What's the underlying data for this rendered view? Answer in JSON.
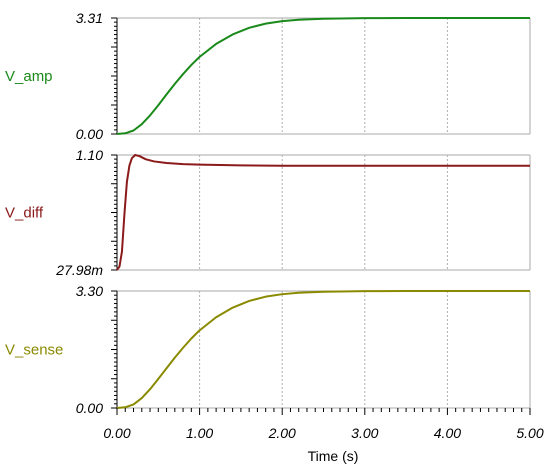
{
  "chart_data": {
    "type": "line",
    "xlabel": "Time (s)",
    "xlim": [
      0,
      5
    ],
    "x_ticks": [
      "0.00",
      "1.00",
      "2.00",
      "3.00",
      "4.00",
      "5.00"
    ],
    "x_tick_values": [
      0,
      1,
      2,
      3,
      4,
      5
    ],
    "grid": "vertical dotted at major x ticks",
    "panels": [
      {
        "ylabel": "V_amp",
        "color": "#1a8a1a",
        "ylim": [
          0,
          3.31
        ],
        "y_tick_labels": [
          "0.00",
          "3.31"
        ],
        "x": [
          0,
          0.1,
          0.2,
          0.3,
          0.4,
          0.5,
          0.6,
          0.7,
          0.8,
          0.9,
          1.0,
          1.2,
          1.4,
          1.6,
          1.8,
          2.0,
          2.2,
          2.5,
          3.0,
          3.5,
          4.0,
          5.0
        ],
        "y": [
          0,
          0.02,
          0.1,
          0.28,
          0.53,
          0.82,
          1.13,
          1.43,
          1.71,
          1.97,
          2.2,
          2.57,
          2.84,
          3.03,
          3.15,
          3.22,
          3.26,
          3.29,
          3.305,
          3.31,
          3.31,
          3.31
        ]
      },
      {
        "ylabel": "V_diff",
        "color": "#8b1a1a",
        "ylim": [
          0.02798,
          1.1
        ],
        "y_tick_labels": [
          "27.98m",
          "1.10"
        ],
        "x": [
          0,
          0.03,
          0.06,
          0.09,
          0.12,
          0.15,
          0.18,
          0.22,
          0.27,
          0.35,
          0.45,
          0.6,
          0.8,
          1.0,
          1.5,
          2.0,
          3.0,
          4.0,
          5.0
        ],
        "y": [
          0.028,
          0.06,
          0.2,
          0.55,
          0.85,
          1.0,
          1.07,
          1.1,
          1.09,
          1.06,
          1.04,
          1.025,
          1.015,
          1.01,
          1.003,
          1.0,
          1.0,
          1.0,
          1.0
        ]
      },
      {
        "ylabel": "V_sense",
        "color": "#8a8a00",
        "ylim": [
          0,
          3.3
        ],
        "y_tick_labels": [
          "0.00",
          "3.30"
        ],
        "x": [
          0,
          0.1,
          0.2,
          0.3,
          0.4,
          0.5,
          0.6,
          0.7,
          0.8,
          0.9,
          1.0,
          1.2,
          1.4,
          1.6,
          1.8,
          2.0,
          2.2,
          2.5,
          3.0,
          3.5,
          4.0,
          5.0
        ],
        "y": [
          0,
          0.02,
          0.1,
          0.28,
          0.53,
          0.82,
          1.12,
          1.42,
          1.7,
          1.96,
          2.19,
          2.56,
          2.83,
          3.02,
          3.14,
          3.21,
          3.25,
          3.28,
          3.295,
          3.3,
          3.3,
          3.3
        ]
      }
    ]
  }
}
